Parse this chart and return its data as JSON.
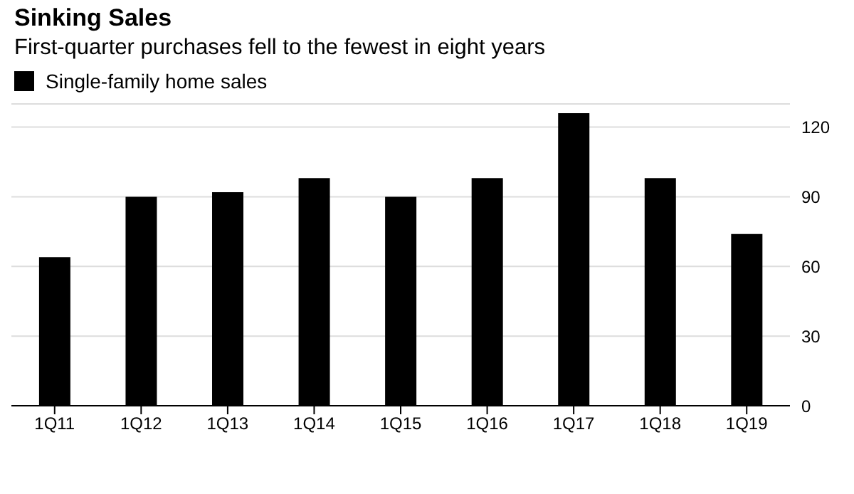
{
  "chart_data": {
    "type": "bar",
    "title": "Sinking Sales",
    "subtitle": "First-quarter purchases fell to the fewest in eight years",
    "categories": [
      "1Q11",
      "1Q12",
      "1Q13",
      "1Q14",
      "1Q15",
      "1Q16",
      "1Q17",
      "1Q18",
      "1Q19"
    ],
    "series": [
      {
        "name": "Single-family home sales",
        "color": "#000000",
        "values": [
          64,
          90,
          92,
          98,
          90,
          98,
          126,
          98,
          74
        ]
      }
    ],
    "ylim": [
      0,
      130
    ],
    "yticks": [
      0,
      30,
      60,
      90,
      120
    ],
    "grid": "y",
    "legend": "top left"
  }
}
